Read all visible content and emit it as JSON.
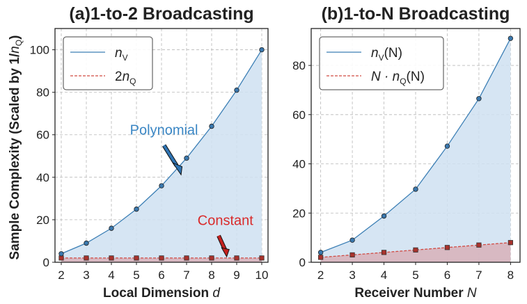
{
  "y_axis_label": {
    "main": "Sample Complexity (Scaled by 1/",
    "var": "n",
    "sub": "Q",
    "close": ")"
  },
  "chart_data": [
    {
      "id": "a",
      "type": "line",
      "title": "(a)1-to-2 Broadcasting",
      "xlabel": {
        "text": "Local Dimension ",
        "var": "d"
      },
      "x": [
        2,
        3,
        4,
        5,
        6,
        7,
        8,
        9,
        10
      ],
      "xlim": [
        1.75,
        10.25
      ],
      "ylim": [
        0,
        110
      ],
      "xticks": [
        "2",
        "3",
        "4",
        "5",
        "6",
        "7",
        "8",
        "9",
        "10"
      ],
      "yticks": [
        "0",
        "20",
        "40",
        "60",
        "80",
        "100"
      ],
      "ytick_values": [
        0,
        20,
        40,
        60,
        80,
        100
      ],
      "grid": true,
      "legend_position": "top-left",
      "series": [
        {
          "name": "nV",
          "legend": {
            "pre": "",
            "var": "n",
            "sub": "V",
            "post": ""
          },
          "color": "#3c7fb5",
          "fill": "#cfe1f1",
          "style": "solid",
          "marker": "circle",
          "values": [
            4,
            9,
            16,
            25,
            36,
            49,
            64,
            81,
            100
          ]
        },
        {
          "name": "2nQ",
          "legend": {
            "pre": "2",
            "var": "n",
            "sub": "Q",
            "post": ""
          },
          "color": "#d04a42",
          "fill": "#d8a9b2",
          "style": "dashed",
          "marker": "square",
          "values": [
            2,
            2,
            2,
            2,
            2,
            2,
            2,
            2,
            2
          ]
        }
      ],
      "annotations": [
        {
          "text": "Polynomial",
          "color": "#3a86c4",
          "arrow_color": "#2f74b3"
        },
        {
          "text": "Constant",
          "color": "#d92b2b",
          "arrow_color": "#c4211f"
        }
      ]
    },
    {
      "id": "b",
      "type": "line",
      "title": "(b)1-to-N Broadcasting",
      "xlabel": {
        "text": "Receiver Number ",
        "var": "N"
      },
      "x": [
        2,
        3,
        4,
        5,
        6,
        7,
        8
      ],
      "xlim": [
        1.7,
        8.3
      ],
      "ylim": [
        0,
        95
      ],
      "xticks": [
        "2",
        "3",
        "4",
        "5",
        "6",
        "7",
        "8"
      ],
      "yticks": [
        "0",
        "20",
        "40",
        "60",
        "80"
      ],
      "ytick_values": [
        0,
        20,
        40,
        60,
        80
      ],
      "grid": true,
      "legend_position": "top-left",
      "series": [
        {
          "name": "nV(N)",
          "legend": {
            "pre": "",
            "var": "n",
            "sub": "V",
            "post": "(N)"
          },
          "color": "#3c7fb5",
          "fill": "#cfe1f1",
          "style": "solid",
          "marker": "circle",
          "values": [
            4,
            9,
            18.8,
            29.7,
            47.2,
            66.5,
            91
          ]
        },
        {
          "name": "N·nQ(N)",
          "legend": {
            "pre": "N · ",
            "var": "n",
            "sub": "Q",
            "post": "(N)"
          },
          "color": "#d04a42",
          "fill": "#d8a9b2",
          "style": "dashed",
          "marker": "square",
          "values": [
            2,
            3,
            4,
            5,
            6,
            7,
            8
          ]
        }
      ]
    }
  ]
}
